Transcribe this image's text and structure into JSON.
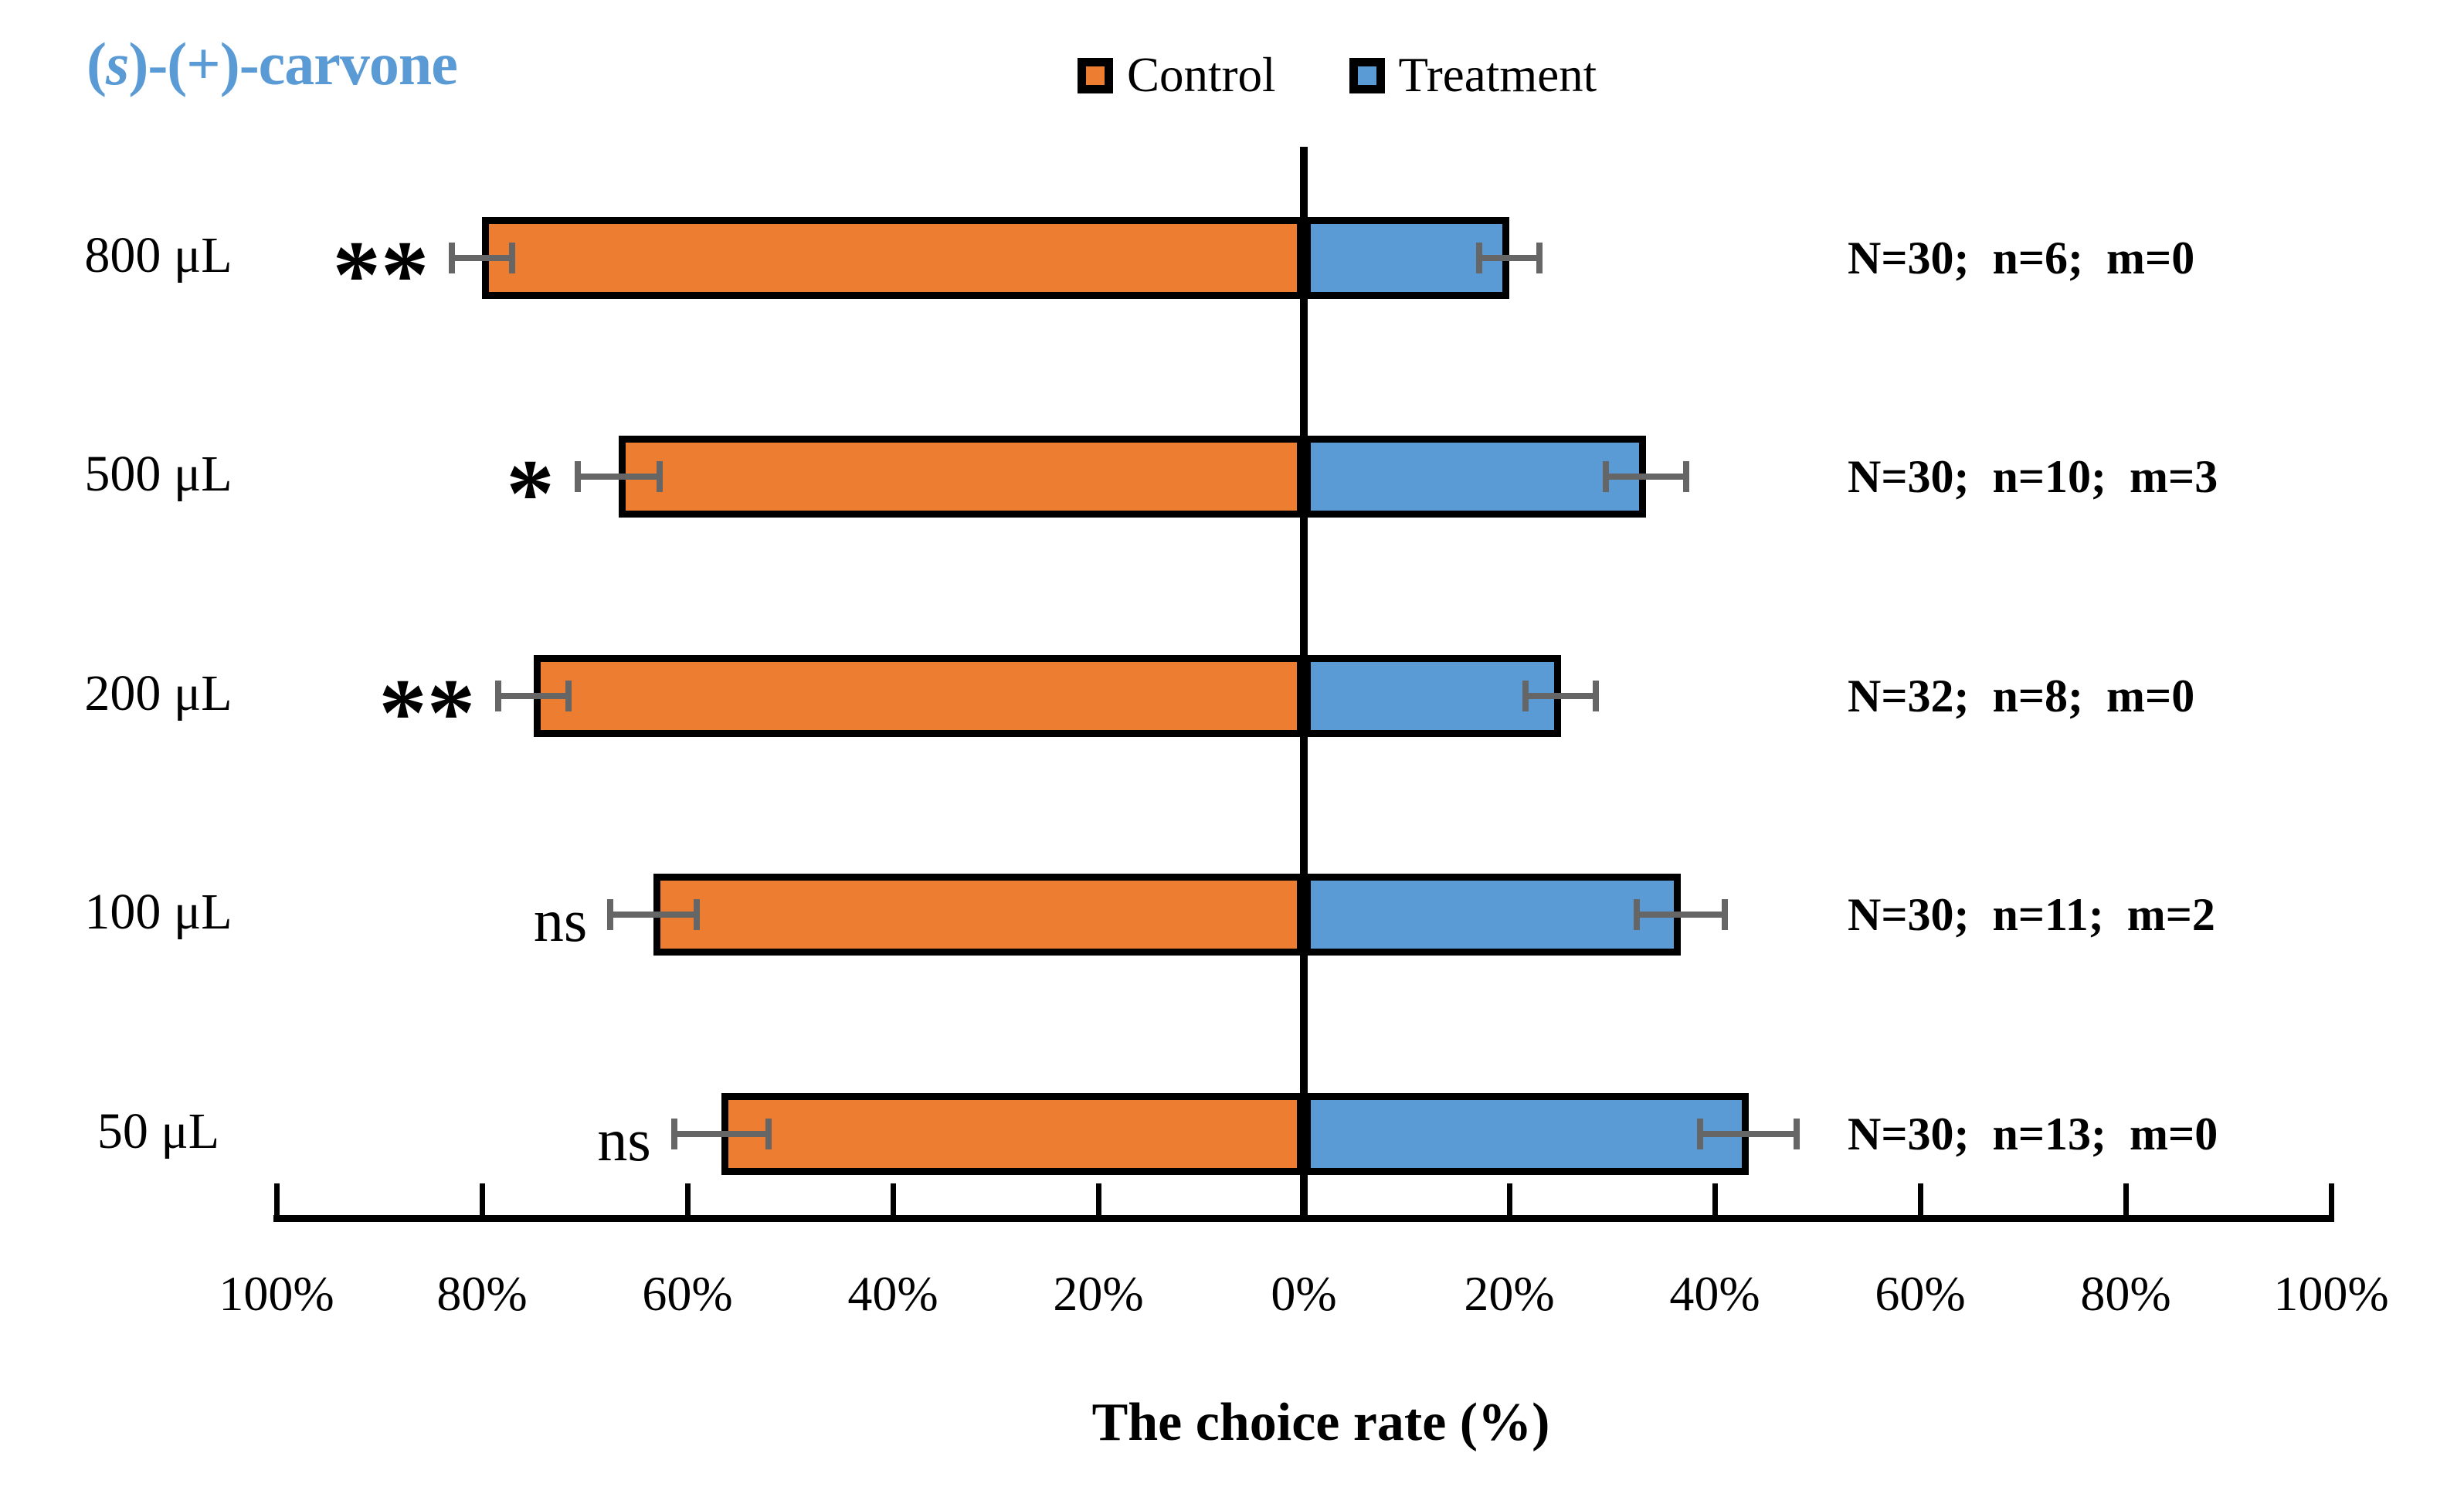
{
  "title": {
    "open": "(",
    "stereo": "s",
    "rest": ")-(+)-carvone",
    "color": "#5B9BD5"
  },
  "legend": [
    {
      "label": "Control",
      "color": "#ED7D31"
    },
    {
      "label": "Treatment",
      "color": "#5B9BD5"
    }
  ],
  "chart_data": {
    "type": "bar",
    "orientation": "diverging-horizontal",
    "title": "(s)-(+)-carvone",
    "categories": [
      "800 μL",
      "500 μL",
      "200 μL",
      "100 μL",
      "50 μL"
    ],
    "series": [
      {
        "name": "Control",
        "side": "left",
        "color": "#ED7D31",
        "values": [
          80.0,
          66.7,
          75.0,
          63.3,
          56.7
        ],
        "errors": [
          2.9,
          4.0,
          3.4,
          4.2,
          4.6
        ]
      },
      {
        "name": "Treatment",
        "side": "right",
        "color": "#5B9BD5",
        "values": [
          20.0,
          33.3,
          25.0,
          36.7,
          43.3
        ],
        "errors": [
          2.9,
          3.9,
          3.4,
          4.3,
          4.7
        ]
      }
    ],
    "significance": [
      "**",
      "*",
      "**",
      "ns",
      "ns"
    ],
    "annotations": [
      "N=30;  n=6;  m=0",
      "N=30;  n=10;  m=3",
      "N=32;  n=8;  m=0",
      "N=30;  n=11;  m=2",
      "N=30;  n=13;  m=0"
    ],
    "x_tick_labels": [
      "100%",
      "80%",
      "60%",
      "40%",
      "20%",
      "0%",
      "20%",
      "40%",
      "60%",
      "80%",
      "100%"
    ],
    "xlabel": "The choice rate (%)",
    "x_range_each_side": [
      0,
      100
    ],
    "grid": false,
    "legend_position": "top-center",
    "error_bar_color": "#666666",
    "bar_border_color": "#000000"
  }
}
